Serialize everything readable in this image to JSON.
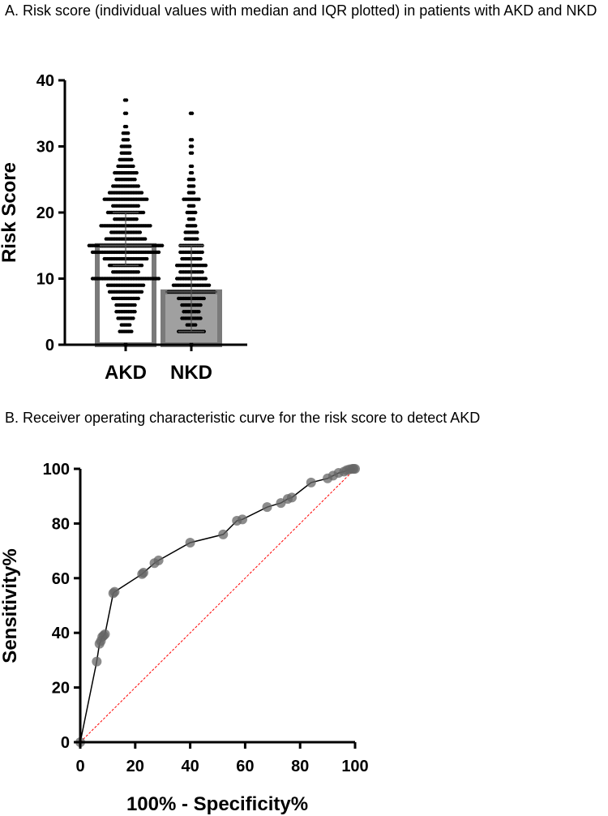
{
  "captions": {
    "a": "A.  Risk score (individual values with median and IQR plotted) in patients with AKD and NKD",
    "b": "B.  Receiver operating characteristic curve for the risk score to detect AKD"
  },
  "chart_data": [
    {
      "type": "bar",
      "title": "A.  Risk score (individual values with median and IQR plotted) in patients with AKD and NKD",
      "ylabel": "Risk Score",
      "xlabel": "",
      "ylim": [
        0,
        40
      ],
      "yticks": [
        0,
        10,
        20,
        30,
        40
      ],
      "categories": [
        "AKD",
        "NKD"
      ],
      "values": [
        15,
        8
      ],
      "iqr": [
        [
          12,
          20
        ],
        [
          2,
          15
        ]
      ],
      "bar_colors": [
        "#ffffff",
        "#a0a0a0"
      ],
      "bar_edge_color": "#7a7a7a",
      "individual_values": [
        [
          0,
          2,
          3,
          4,
          5,
          6,
          7,
          8,
          9,
          10,
          11,
          12,
          13,
          14,
          15,
          16,
          17,
          18,
          19,
          20,
          21,
          22,
          23,
          24,
          25,
          26,
          27,
          28,
          29,
          30,
          31,
          32,
          33,
          35,
          37
        ],
        [
          0,
          2,
          3,
          4,
          5,
          6,
          7,
          8,
          9,
          10,
          11,
          12,
          13,
          14,
          15,
          16,
          17,
          18,
          19,
          20,
          21,
          22,
          23,
          24,
          25,
          26,
          27,
          29,
          30,
          31,
          35
        ]
      ],
      "point_counts": [
        [
          2,
          8,
          6,
          10,
          12,
          12,
          16,
          20,
          22,
          40,
          16,
          20,
          26,
          40,
          44,
          24,
          18,
          30,
          14,
          22,
          16,
          26,
          20,
          16,
          12,
          14,
          10,
          8,
          6,
          6,
          4,
          4,
          2,
          2,
          2
        ],
        [
          2,
          16,
          6,
          12,
          10,
          12,
          16,
          28,
          22,
          18,
          14,
          18,
          12,
          14,
          14,
          8,
          8,
          6,
          4,
          6,
          4,
          10,
          4,
          4,
          4,
          2,
          2,
          2,
          2,
          2,
          2
        ]
      ]
    },
    {
      "type": "line",
      "title": "B.  Receiver operating characteristic curve for the risk score to detect AKD",
      "xlabel": "100% - Specificity%",
      "ylabel": "Sensitivity%",
      "xlim": [
        0,
        100
      ],
      "ylim": [
        0,
        100
      ],
      "xticks": [
        0,
        20,
        40,
        60,
        80,
        100
      ],
      "yticks": [
        0,
        20,
        40,
        60,
        80,
        100
      ],
      "series": [
        {
          "x": [
            0,
            6,
            7,
            7.5,
            8,
            8.5,
            9,
            12,
            12.5,
            22.5,
            23,
            27,
            28.5,
            40,
            52,
            57,
            59,
            68,
            73,
            75.5,
            77,
            84,
            90,
            92,
            94,
            96,
            97,
            98,
            99,
            99.5,
            100
          ],
          "y": [
            0,
            29.5,
            36,
            37,
            38.5,
            39,
            39.5,
            54.5,
            55,
            61.5,
            62,
            65.5,
            66.5,
            73,
            76,
            81,
            81.5,
            86,
            87.5,
            89,
            89.5,
            95,
            96.5,
            97.5,
            98.5,
            99,
            99.5,
            99.8,
            100,
            100,
            100
          ],
          "color": "#000000"
        }
      ],
      "reference_line": {
        "x": [
          0,
          100
        ],
        "y": [
          0,
          100
        ],
        "color": "#ff0000",
        "style": "dashed"
      }
    }
  ]
}
